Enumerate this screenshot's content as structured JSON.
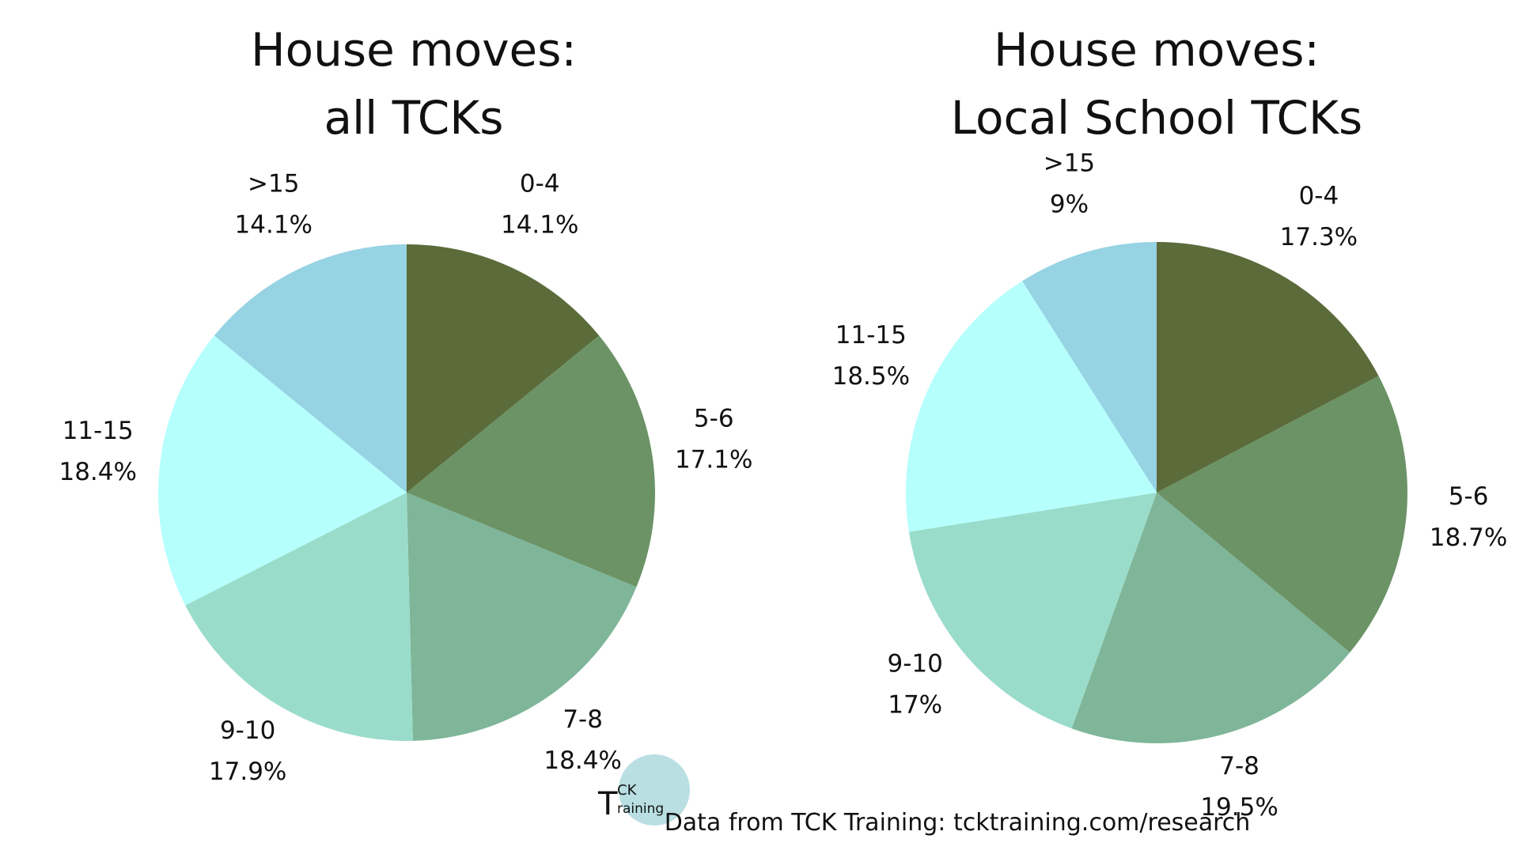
{
  "chart_data": [
    {
      "type": "pie",
      "title": "House moves:\nall TCKs",
      "categories": [
        "0-4",
        "5-6",
        "7-8",
        "9-10",
        "11-15",
        ">15"
      ],
      "values": [
        14.1,
        17.1,
        18.4,
        17.9,
        18.4,
        14.1
      ],
      "value_labels": [
        "14.1%",
        "17.1%",
        "18.4%",
        "17.9%",
        "18.4%",
        "14.1%"
      ],
      "colors": [
        "#5b6b3a",
        "#6b9366",
        "#7fb598",
        "#9adcca",
        "#b5fffd",
        "#96d3e3"
      ]
    },
    {
      "type": "pie",
      "title": "House moves:\nLocal School TCKs",
      "categories": [
        "0-4",
        "5-6",
        "7-8",
        "9-10",
        "11-15",
        ">15"
      ],
      "values": [
        17.3,
        18.7,
        19.5,
        17,
        18.5,
        9
      ],
      "value_labels": [
        "17.3%",
        "18.7%",
        "19.5%",
        "17%",
        "18.5%",
        "9%"
      ],
      "colors": [
        "#5b6b3a",
        "#6b9366",
        "#7fb598",
        "#9adcca",
        "#b5fffd",
        "#96d3e3"
      ]
    }
  ],
  "footer": {
    "text": "Data from TCK Training: tcktraining.com/research",
    "logo_t": "T",
    "logo_ck": "CK",
    "logo_raining": "raining"
  }
}
